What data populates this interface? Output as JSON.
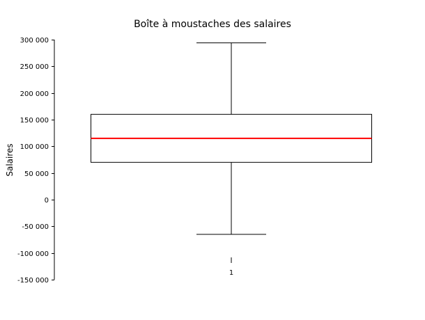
{
  "chart_data": {
    "type": "boxplot",
    "title": "Boîte à moustaches des salaires",
    "xlabel": "",
    "ylabel": "Salaires",
    "ylim": [
      -150000,
      300000
    ],
    "y_ticks": [
      -150000,
      -100000,
      -50000,
      0,
      50000,
      100000,
      150000,
      200000,
      250000,
      300000
    ],
    "y_tick_labels": [
      "-150 000",
      "-100 000",
      "-50 000",
      "0",
      "50 000",
      "100 000",
      "150 000",
      "200 000",
      "250 000",
      "300 000"
    ],
    "categories": [
      "1"
    ],
    "boxes": [
      {
        "label": "1",
        "whisker_low": -65000,
        "q1": 70000,
        "median": 115000,
        "q3": 160000,
        "whisker_high": 294000
      }
    ],
    "colors": {
      "median": "#ff0000",
      "box": "#000000",
      "axis": "#000000"
    },
    "grid": false,
    "legend": "none"
  }
}
